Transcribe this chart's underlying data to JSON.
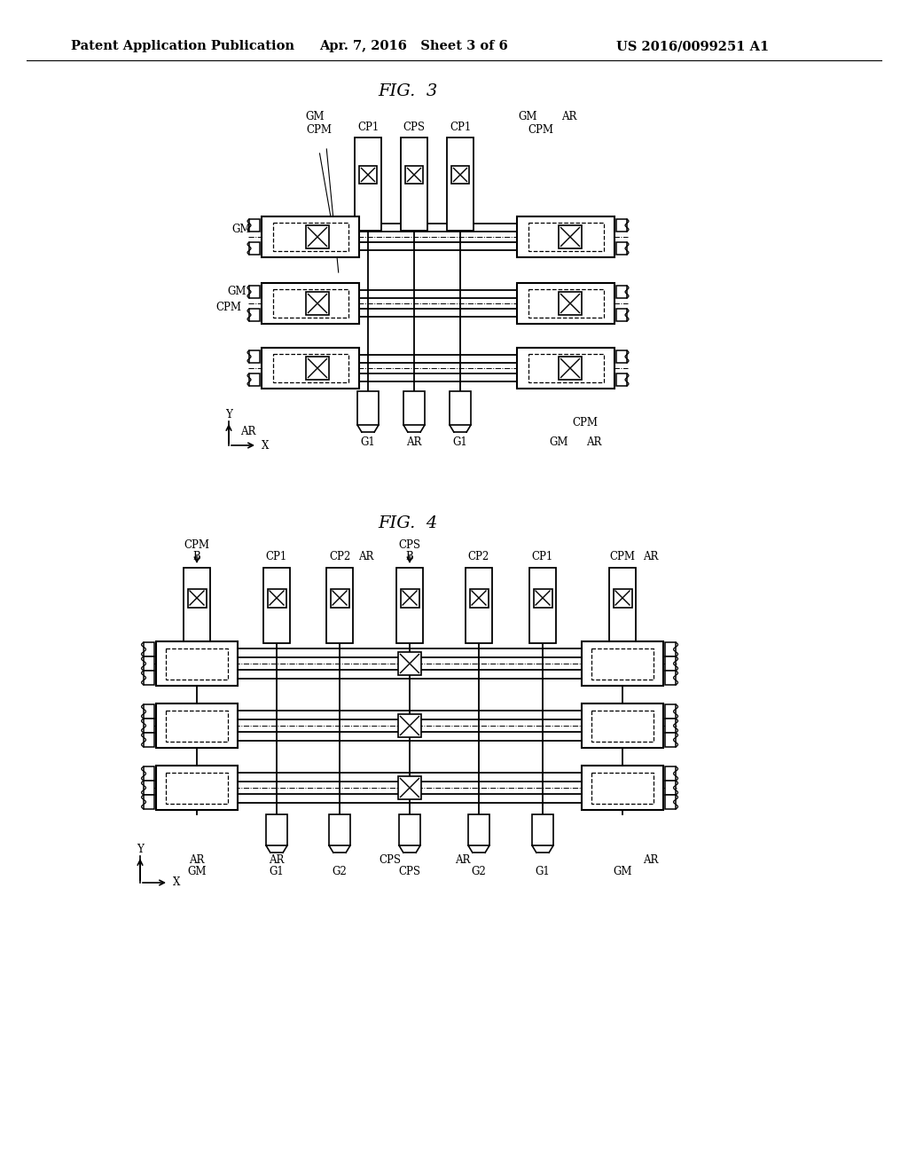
{
  "title_header": "Patent Application Publication",
  "date_header": "Apr. 7, 2016   Sheet 3 of 6",
  "patent_header": "US 2016/0099251 A1",
  "fig3_title": "FIG.  3",
  "fig4_title": "FIG.  4",
  "bg_color": "#ffffff"
}
